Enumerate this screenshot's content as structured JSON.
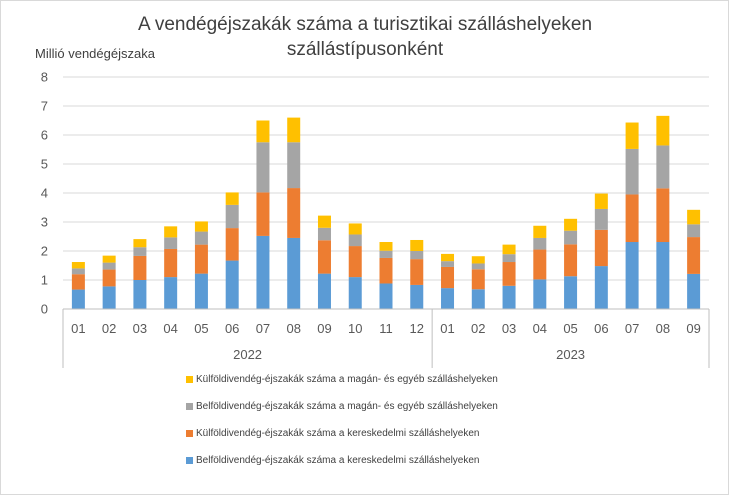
{
  "chart_data": {
    "type": "bar",
    "stacked": true,
    "title_line1": "A vendégéjszakák száma a turisztikai szálláshelyeken",
    "title_line2": "szállástípusonként",
    "ylabel": "Millió vendégéjszaka",
    "ylim": [
      0,
      8
    ],
    "yticks": [
      0,
      1,
      2,
      3,
      4,
      5,
      6,
      7,
      8
    ],
    "grid": true,
    "legend_position": "bottom",
    "categories": [
      "01",
      "02",
      "03",
      "04",
      "05",
      "06",
      "07",
      "08",
      "09",
      "10",
      "11",
      "12",
      "01",
      "02",
      "03",
      "04",
      "05",
      "06",
      "07",
      "08",
      "09"
    ],
    "groups": [
      {
        "label": "2022",
        "count": 12
      },
      {
        "label": "2023",
        "count": 9
      }
    ],
    "series": [
      {
        "name": "Belföldivendég-éjszakák száma a kereskedelmi szálláshelyeken",
        "color": "#5b9bd5",
        "values": [
          0.67,
          0.78,
          1.0,
          1.1,
          1.22,
          1.67,
          2.52,
          2.45,
          1.22,
          1.1,
          0.88,
          0.83,
          0.72,
          0.68,
          0.8,
          1.02,
          1.13,
          1.48,
          2.31,
          2.31,
          1.21
        ]
      },
      {
        "name": "Külföldivendég-éjszakák száma a kereskedelmi szálláshelyeken",
        "color": "#ed7d31",
        "values": [
          0.53,
          0.58,
          0.83,
          0.97,
          1.0,
          1.12,
          1.5,
          1.72,
          1.15,
          1.07,
          0.88,
          0.89,
          0.73,
          0.69,
          0.82,
          1.03,
          1.1,
          1.25,
          1.64,
          1.85,
          1.27
        ]
      },
      {
        "name": "Belföldivendég-éjszakák száma a magán- és egyéb szálláshelyeken",
        "color": "#a5a5a5",
        "values": [
          0.2,
          0.24,
          0.3,
          0.4,
          0.45,
          0.8,
          1.73,
          1.58,
          0.43,
          0.4,
          0.25,
          0.28,
          0.2,
          0.2,
          0.27,
          0.4,
          0.47,
          0.72,
          1.57,
          1.48,
          0.44
        ]
      },
      {
        "name": "Külföldivendég-éjszakák száma a magán- és egyéb szálláshelyeken",
        "color": "#ffc000",
        "values": [
          0.22,
          0.24,
          0.28,
          0.38,
          0.35,
          0.43,
          0.75,
          0.85,
          0.42,
          0.38,
          0.3,
          0.38,
          0.25,
          0.25,
          0.33,
          0.42,
          0.41,
          0.53,
          0.91,
          1.02,
          0.5
        ]
      }
    ],
    "legend_order": [
      3,
      2,
      1,
      0
    ]
  }
}
